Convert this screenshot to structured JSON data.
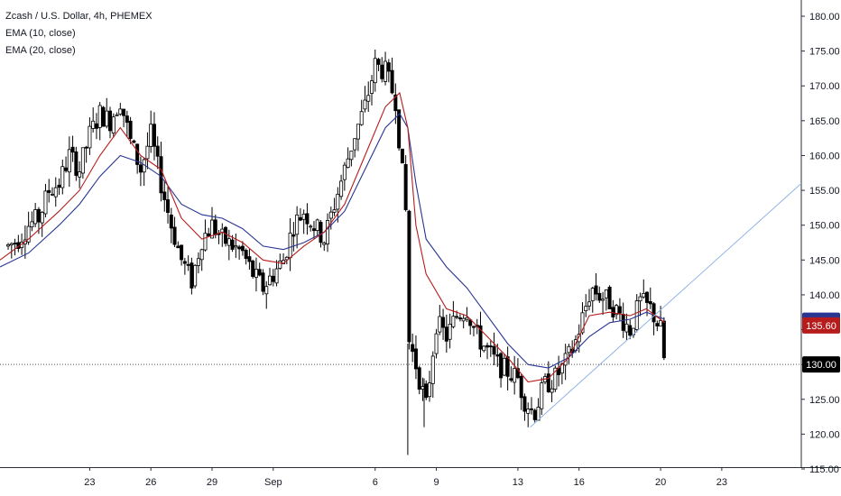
{
  "legend": {
    "title": "Zcash / U.S. Dollar, 4h, PHEMEX",
    "ema10": "EMA (10, close)",
    "ema20": "EMA (20, close)"
  },
  "colors": {
    "up_fill": "#ffffff",
    "down_fill": "#000000",
    "candle_stroke": "#000000",
    "ema10": "#b71c1c",
    "ema20": "#283593",
    "trendline": "#90b4e8",
    "ema20_badge": "#283593",
    "ema10_badge": "#b71c1c",
    "last_badge": "#000000"
  },
  "chart_data": {
    "type": "candlestick",
    "title": "Zcash / U.S. Dollar, 4h, PHEMEX",
    "timeframe": "4h",
    "y_axis": {
      "ylim": [
        115,
        180
      ],
      "ticks": [
        "115.00",
        "120.00",
        "125.00",
        "130.00",
        "135.00",
        "140.00",
        "145.00",
        "150.00",
        "155.00",
        "160.00",
        "165.00",
        "170.00",
        "175.00",
        "180.00"
      ]
    },
    "x_axis": {
      "ticks": [
        {
          "label": "23",
          "day": 23
        },
        {
          "label": "26",
          "day": 26
        },
        {
          "label": "29",
          "day": 29
        },
        {
          "label": "Sep",
          "day": 32
        },
        {
          "label": "6",
          "day": 37
        },
        {
          "label": "9",
          "day": 40
        },
        {
          "label": "13",
          "day": 44
        },
        {
          "label": "16",
          "day": 47
        },
        {
          "label": "20",
          "day": 51
        },
        {
          "label": "23",
          "day": 54
        }
      ],
      "day_range": [
        18.6,
        57.9
      ]
    },
    "series": [
      {
        "name": "Price",
        "kind": "ohlc_close_path",
        "points": [
          [
            19.0,
            147
          ],
          [
            19.5,
            148
          ],
          [
            20.0,
            150
          ],
          [
            20.5,
            151
          ],
          [
            21.0,
            155
          ],
          [
            21.5,
            156
          ],
          [
            22.0,
            160
          ],
          [
            22.5,
            158
          ],
          [
            23.0,
            163
          ],
          [
            23.5,
            166
          ],
          [
            24.0,
            165
          ],
          [
            24.5,
            168
          ],
          [
            25.0,
            162
          ],
          [
            25.5,
            158
          ],
          [
            26.0,
            163
          ],
          [
            26.5,
            156
          ],
          [
            27.0,
            150
          ],
          [
            27.5,
            145
          ],
          [
            28.0,
            142
          ],
          [
            28.5,
            148
          ],
          [
            29.0,
            150
          ],
          [
            29.5,
            148
          ],
          [
            30.0,
            147
          ],
          [
            30.5,
            146
          ],
          [
            31.0,
            143
          ],
          [
            31.5,
            141
          ],
          [
            32.0,
            143
          ],
          [
            32.5,
            145
          ],
          [
            33.0,
            150
          ],
          [
            33.5,
            152
          ],
          [
            34.0,
            150
          ],
          [
            34.5,
            148
          ],
          [
            35.0,
            153
          ],
          [
            35.5,
            158
          ],
          [
            36.0,
            163
          ],
          [
            36.5,
            167
          ],
          [
            37.0,
            173
          ],
          [
            37.5,
            172
          ],
          [
            38.0,
            168
          ],
          [
            38.5,
            152
          ],
          [
            38.6,
            134
          ],
          [
            39.0,
            130
          ],
          [
            39.5,
            124
          ],
          [
            40.0,
            136
          ],
          [
            40.5,
            134
          ],
          [
            41.0,
            137
          ],
          [
            41.5,
            138
          ],
          [
            42.0,
            134
          ],
          [
            42.5,
            132
          ],
          [
            43.0,
            130
          ],
          [
            43.5,
            129
          ],
          [
            44.0,
            128
          ],
          [
            44.3,
            125
          ],
          [
            44.8,
            123
          ],
          [
            45.3,
            127
          ],
          [
            45.8,
            128
          ],
          [
            46.3,
            130
          ],
          [
            46.8,
            133
          ],
          [
            47.2,
            137
          ],
          [
            47.6,
            141
          ],
          [
            48.0,
            140
          ],
          [
            48.5,
            139
          ],
          [
            49.0,
            137
          ],
          [
            49.5,
            135
          ],
          [
            50.0,
            139
          ],
          [
            50.5,
            138
          ],
          [
            51.0,
            135
          ],
          [
            51.2,
            130
          ]
        ]
      },
      {
        "name": "EMA (10, close)",
        "points": [
          [
            18.6,
            145
          ],
          [
            20.0,
            148
          ],
          [
            21.5,
            152
          ],
          [
            22.5,
            155
          ],
          [
            23.5,
            160
          ],
          [
            24.5,
            164
          ],
          [
            25.5,
            160
          ],
          [
            26.5,
            158
          ],
          [
            27.5,
            151
          ],
          [
            28.5,
            148
          ],
          [
            29.5,
            149
          ],
          [
            30.5,
            147.5
          ],
          [
            31.5,
            145
          ],
          [
            32.5,
            144.5
          ],
          [
            33.5,
            147
          ],
          [
            34.5,
            149
          ],
          [
            35.5,
            153
          ],
          [
            36.5,
            160
          ],
          [
            37.5,
            167
          ],
          [
            38.2,
            169
          ],
          [
            38.6,
            164
          ],
          [
            39.0,
            150
          ],
          [
            39.5,
            143
          ],
          [
            40.5,
            138
          ],
          [
            41.5,
            137
          ],
          [
            42.5,
            134
          ],
          [
            43.5,
            131
          ],
          [
            44.5,
            127.5
          ],
          [
            45.5,
            128
          ],
          [
            46.5,
            131
          ],
          [
            47.5,
            137
          ],
          [
            48.5,
            137.5
          ],
          [
            49.5,
            137
          ],
          [
            50.3,
            138
          ],
          [
            51.2,
            136
          ]
        ]
      },
      {
        "name": "EMA (20, close)",
        "points": [
          [
            18.6,
            144
          ],
          [
            20.0,
            146
          ],
          [
            21.5,
            150
          ],
          [
            22.5,
            153
          ],
          [
            23.5,
            157
          ],
          [
            24.5,
            160
          ],
          [
            25.5,
            159
          ],
          [
            26.5,
            157
          ],
          [
            27.5,
            153
          ],
          [
            28.5,
            151.5
          ],
          [
            29.5,
            151
          ],
          [
            30.5,
            149.5
          ],
          [
            31.5,
            147
          ],
          [
            32.5,
            146.5
          ],
          [
            33.5,
            147.5
          ],
          [
            34.5,
            149
          ],
          [
            35.5,
            152
          ],
          [
            36.5,
            158
          ],
          [
            37.5,
            164
          ],
          [
            38.2,
            166
          ],
          [
            38.6,
            164
          ],
          [
            39.0,
            156
          ],
          [
            39.5,
            148
          ],
          [
            40.5,
            144
          ],
          [
            41.5,
            141
          ],
          [
            42.5,
            137
          ],
          [
            43.5,
            133
          ],
          [
            44.5,
            130
          ],
          [
            45.5,
            129.5
          ],
          [
            46.5,
            131
          ],
          [
            47.5,
            134
          ],
          [
            48.5,
            136
          ],
          [
            49.5,
            136.5
          ],
          [
            50.3,
            137.5
          ],
          [
            51.2,
            136.5
          ]
        ]
      },
      {
        "name": "Trendline",
        "points": [
          [
            44.6,
            121
          ],
          [
            57.9,
            156
          ]
        ]
      }
    ],
    "price_labels": {
      "ema20": "136.29",
      "ema10": "135.60",
      "last": "130.00"
    },
    "current_price": 130,
    "grid": false,
    "legend_position": "top-left"
  }
}
